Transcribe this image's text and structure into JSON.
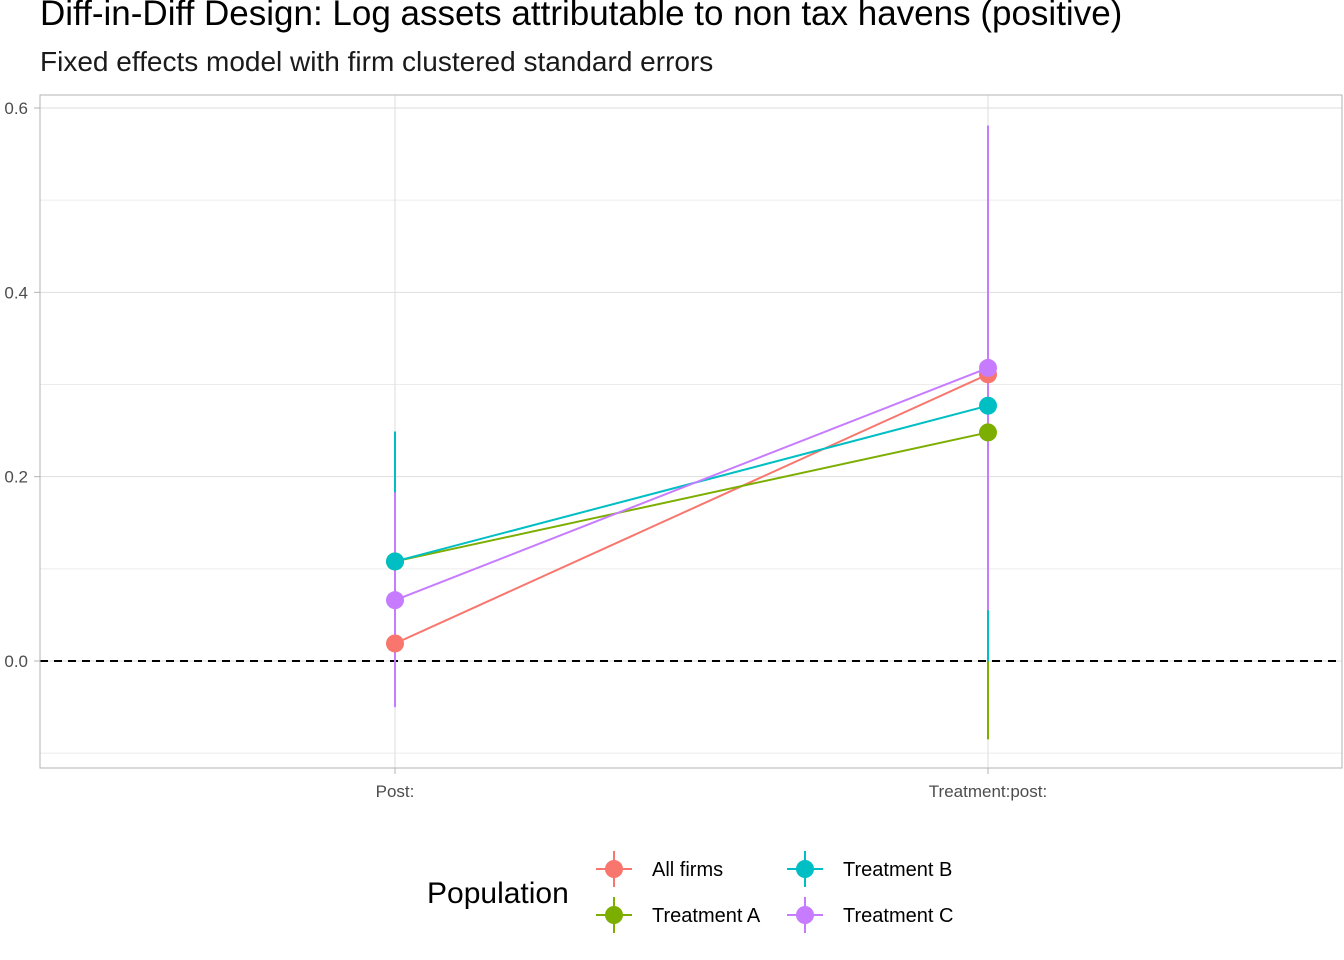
{
  "chart_data": {
    "type": "scatter",
    "title": "Diff-in-Diff Design: Log assets attributable to non tax havens (positive)",
    "subtitle": "Fixed effects model with firm clustered standard errors",
    "xlabel": "",
    "ylabel": "",
    "categories": [
      "Post:",
      "Treatment:post:"
    ],
    "ylim": [
      -0.1,
      0.6
    ],
    "yticks": [
      0.0,
      0.2,
      0.4,
      0.6
    ],
    "ytick_labels": [
      "0.0",
      "0.2",
      "0.4",
      "0.6"
    ],
    "reference_line": 0.0,
    "grid": true,
    "legend": {
      "title": "Population",
      "position": "bottom"
    },
    "series": [
      {
        "name": "All firms",
        "color": "#F8766D",
        "values": [
          0.019,
          0.311
        ],
        "lower": [
          0.019,
          0.311
        ],
        "upper": [
          0.019,
          0.311
        ]
      },
      {
        "name": "Treatment A",
        "color": "#7CAE00",
        "values": [
          0.108,
          0.248
        ],
        "lower": [
          0.108,
          -0.085
        ],
        "upper": [
          0.108,
          0.248
        ]
      },
      {
        "name": "Treatment B",
        "color": "#00BFC4",
        "values": [
          0.108,
          0.277
        ],
        "lower": [
          0.108,
          0.0
        ],
        "upper": [
          0.249,
          0.277
        ]
      },
      {
        "name": "Treatment C",
        "color": "#C77CFF",
        "values": [
          0.066,
          0.318
        ],
        "lower": [
          -0.05,
          0.055
        ],
        "upper": [
          0.183,
          0.581
        ]
      }
    ]
  }
}
